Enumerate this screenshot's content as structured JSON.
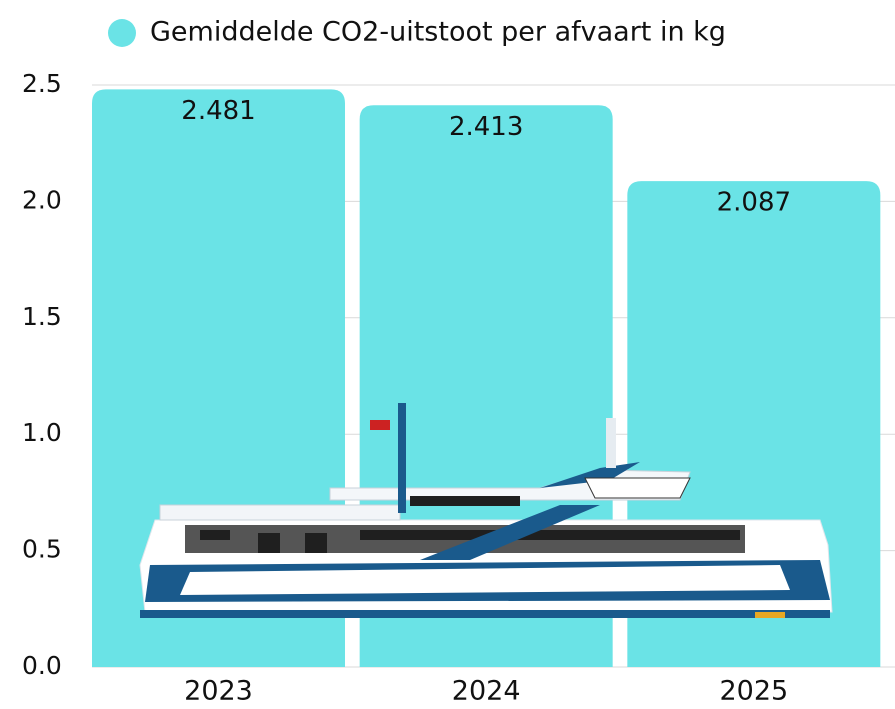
{
  "chart_data": {
    "type": "bar",
    "legend": "Gemiddelde CO2-uitstoot per afvaart in kg",
    "categories": [
      "2023",
      "2024",
      "2025"
    ],
    "values": [
      2.481,
      2.413,
      2.087
    ],
    "color": "#6ae3e6",
    "ylim": [
      0,
      2.5
    ],
    "yticks": [
      {
        "value": 0,
        "label": "0.0"
      },
      0.5,
      {
        "value": 1,
        "label": "1.0"
      },
      1.5,
      {
        "value": 2,
        "label": "2.0"
      },
      2.5
    ],
    "grid": true
  }
}
